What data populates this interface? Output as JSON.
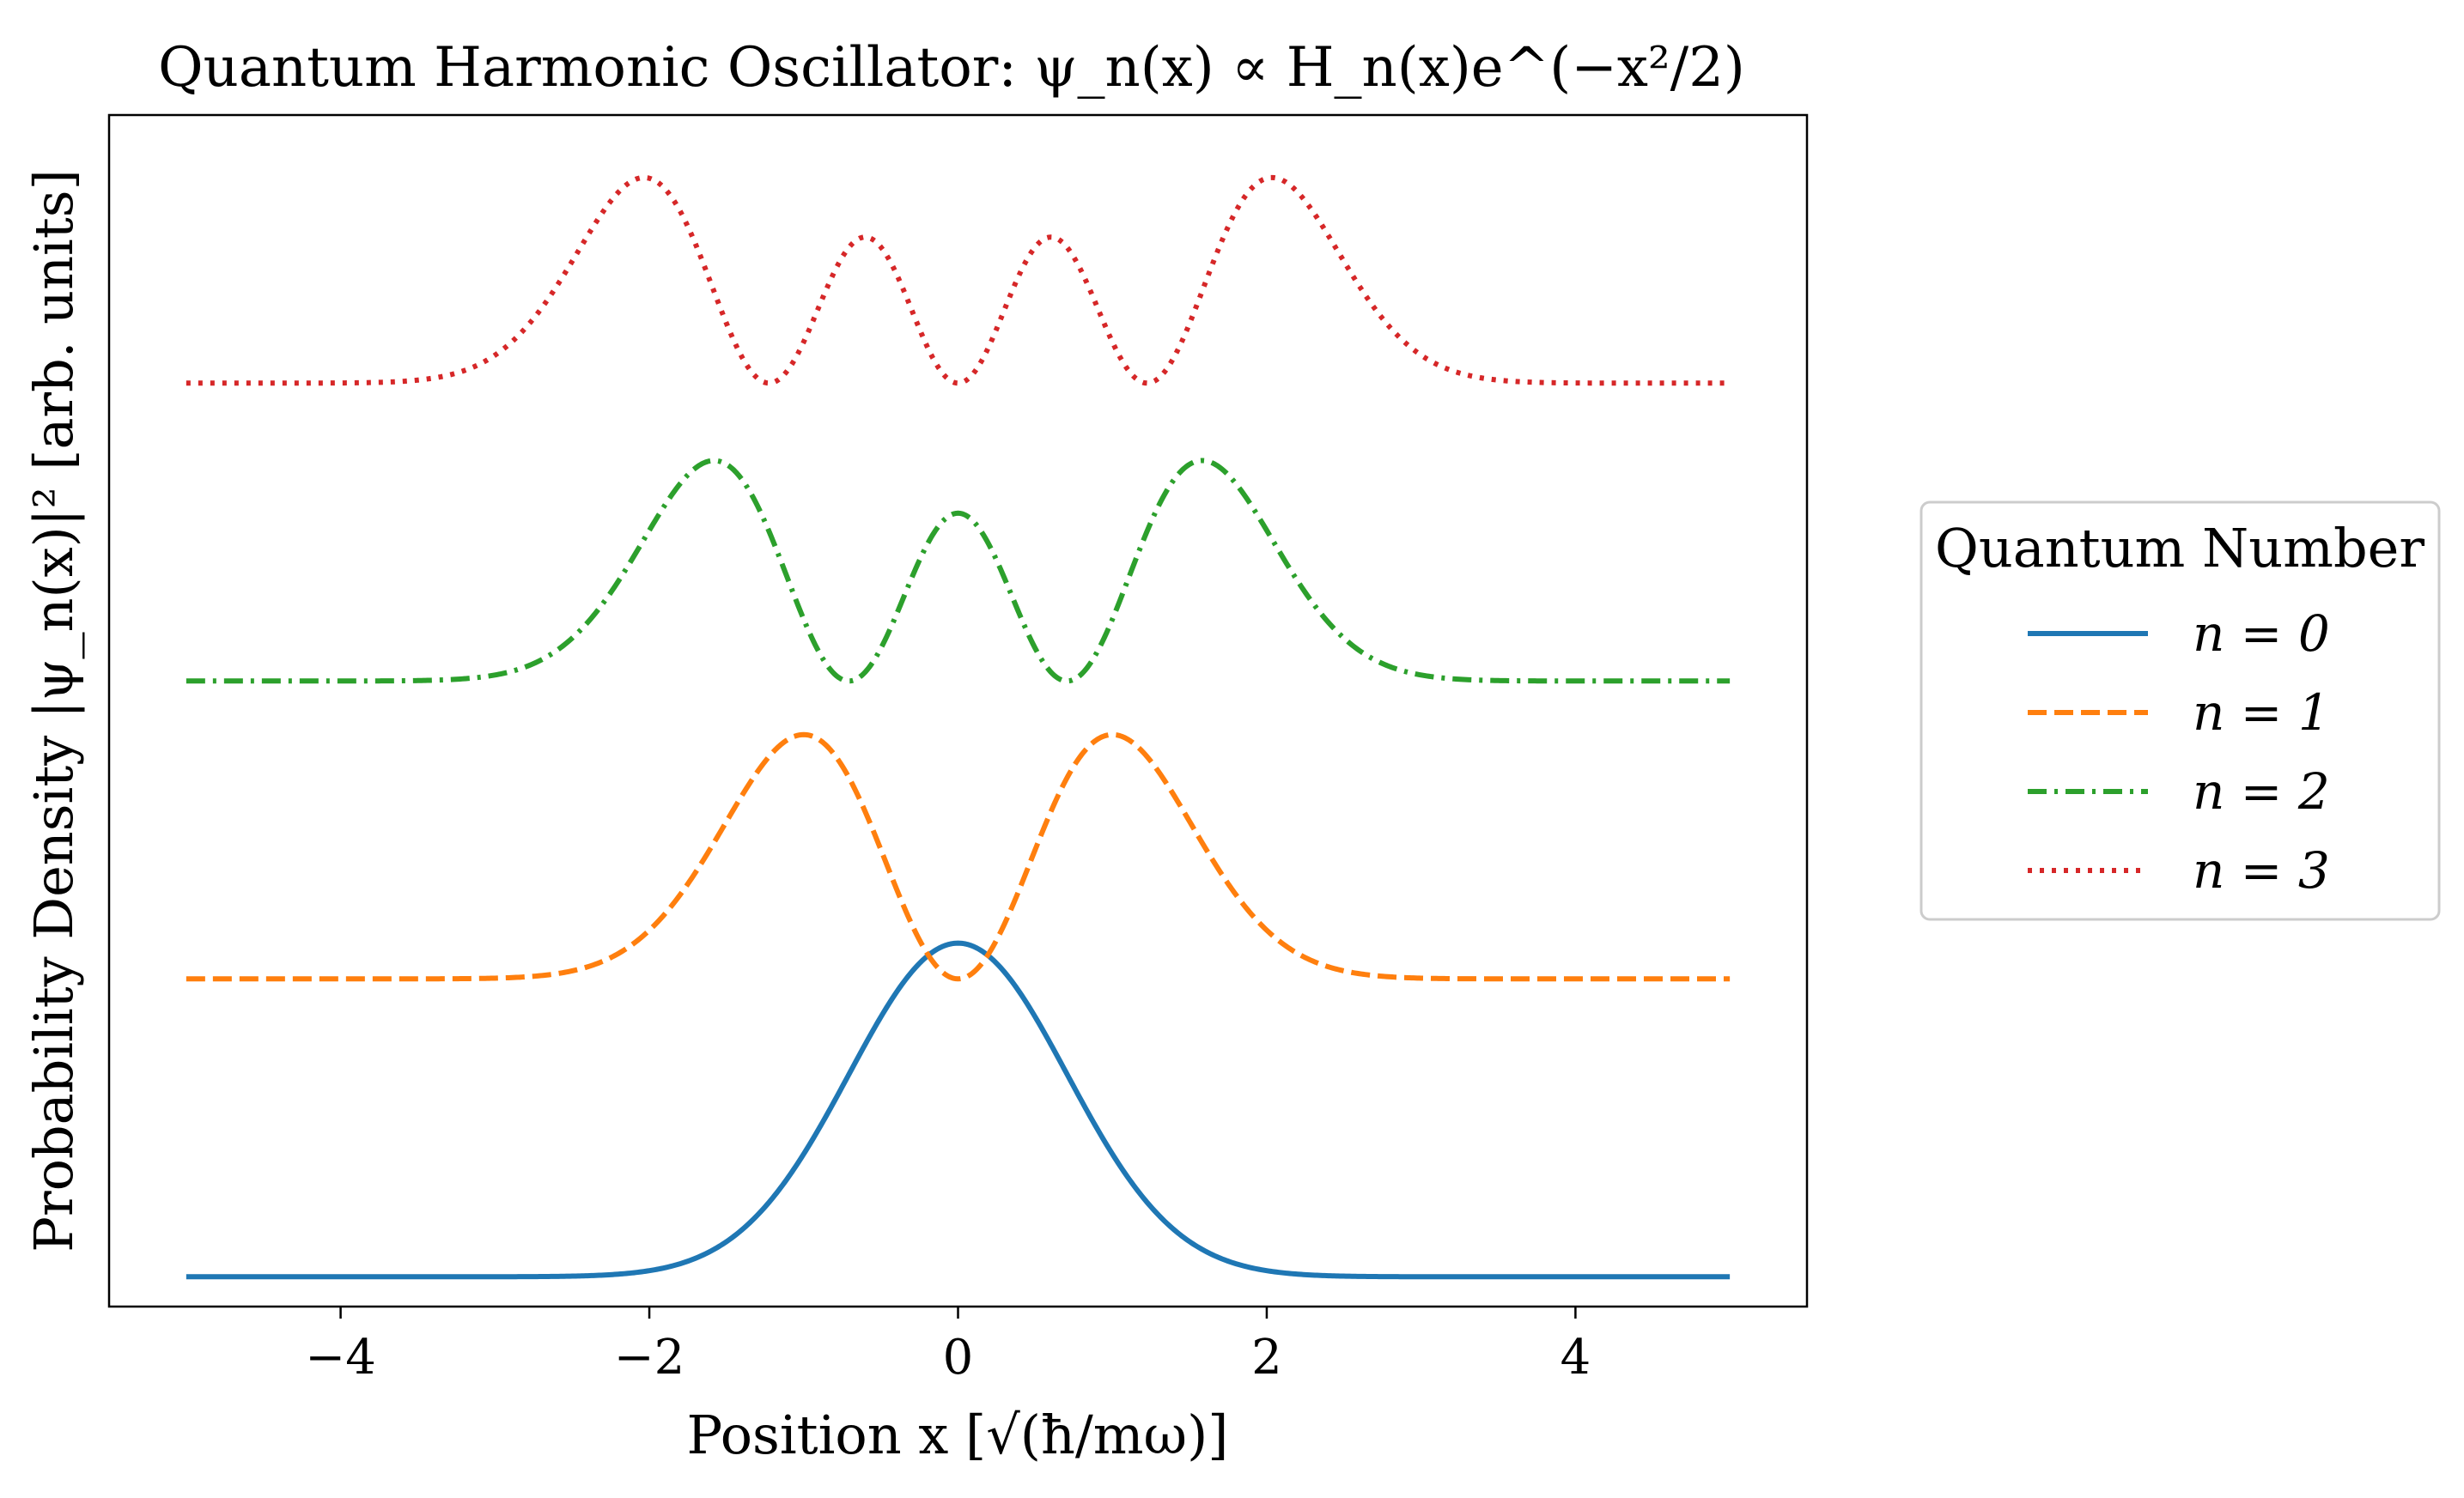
{
  "chart_data": {
    "type": "line",
    "title": "Quantum Harmonic Oscillator: ψ_n(x) ∝ H_n(x)e^(−x²/2)",
    "xlabel": "Position x [√(ħ/mω)]",
    "ylabel": "Probability Density |ψ_n(x)|² [arb. units]",
    "xlim": [
      -5.5,
      5.5
    ],
    "ylim": [
      -0.1,
      3.9
    ],
    "xticks": [
      -4,
      -2,
      0,
      2,
      4
    ],
    "xtick_labels": [
      "−4",
      "−2",
      "0",
      "2",
      "4"
    ],
    "y_ticks_shown": false,
    "grid": false,
    "legend": {
      "title": "Quantum Number",
      "placement": "outside-right"
    },
    "curve_domain": [
      -5,
      5
    ],
    "series": [
      {
        "name": "n = 0",
        "n": 0,
        "offset": 0.0,
        "color": "#1f77b4",
        "dash": "solid",
        "peaks": [
          {
            "x": 0.0,
            "y": 1.12
          }
        ]
      },
      {
        "name": "n = 1",
        "n": 1,
        "offset": 1.0,
        "color": "#ff7f0e",
        "dash": "dashed",
        "peaks": [
          {
            "x": -1.0,
            "y": 1.82
          },
          {
            "x": 1.0,
            "y": 1.82
          }
        ]
      },
      {
        "name": "n = 2",
        "n": 2,
        "offset": 2.0,
        "color": "#2ca02c",
        "dash": "dashdot",
        "peaks": [
          {
            "x": -1.58,
            "y": 2.74
          },
          {
            "x": 0.0,
            "y": 2.56
          },
          {
            "x": 1.58,
            "y": 2.74
          }
        ]
      },
      {
        "name": "n = 3",
        "n": 3,
        "offset": 3.0,
        "color": "#d62728",
        "dash": "dotted",
        "peaks": [
          {
            "x": -2.05,
            "y": 3.69
          },
          {
            "x": -0.6,
            "y": 3.49
          },
          {
            "x": 0.6,
            "y": 3.49
          },
          {
            "x": 2.05,
            "y": 3.69
          }
        ]
      }
    ]
  }
}
